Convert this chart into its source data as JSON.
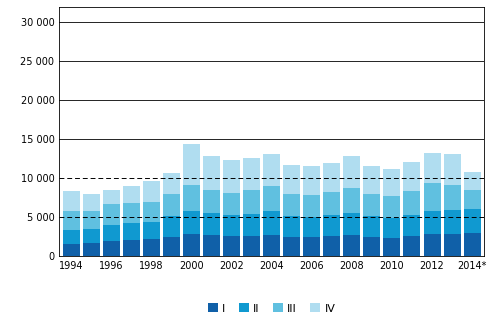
{
  "years": [
    1994,
    1995,
    1996,
    1997,
    1998,
    1999,
    2000,
    2001,
    2002,
    2003,
    2004,
    2005,
    2006,
    2007,
    2008,
    2009,
    2010,
    2011,
    2012,
    2013,
    2014
  ],
  "Q1": [
    1500,
    1600,
    1900,
    2000,
    2100,
    2400,
    2800,
    2700,
    2500,
    2600,
    2700,
    2400,
    2400,
    2500,
    2700,
    2400,
    2300,
    2500,
    2800,
    2800,
    2900
  ],
  "Q2": [
    1800,
    1900,
    2100,
    2200,
    2300,
    2700,
    3000,
    2800,
    2700,
    2800,
    3000,
    2700,
    2600,
    2800,
    2800,
    2700,
    2600,
    2800,
    3000,
    3100,
    3100
  ],
  "Q3": [
    2500,
    2300,
    2600,
    2600,
    2500,
    2800,
    3300,
    3000,
    2900,
    3100,
    3300,
    2900,
    2800,
    2900,
    3200,
    2800,
    2800,
    3000,
    3500,
    3200,
    2500
  ],
  "Q4": [
    2500,
    2200,
    1900,
    2200,
    2700,
    2700,
    5200,
    4300,
    4200,
    4100,
    4100,
    3700,
    3700,
    3700,
    4100,
    3600,
    3500,
    3700,
    3900,
    4000,
    2200
  ],
  "colors": [
    "#1060a8",
    "#1099d0",
    "#60c0e0",
    "#b0ddf0"
  ],
  "legend_labels": [
    "I",
    "II",
    "III",
    "IV"
  ],
  "ylim": [
    0,
    32000
  ],
  "yticks": [
    0,
    5000,
    10000,
    15000,
    20000,
    25000,
    30000
  ],
  "ytick_labels": [
    "0",
    "5 000",
    "10 000",
    "15 000",
    "20 000",
    "25 000",
    "30 000"
  ],
  "bg_color": "#ffffff",
  "bar_width": 0.85
}
